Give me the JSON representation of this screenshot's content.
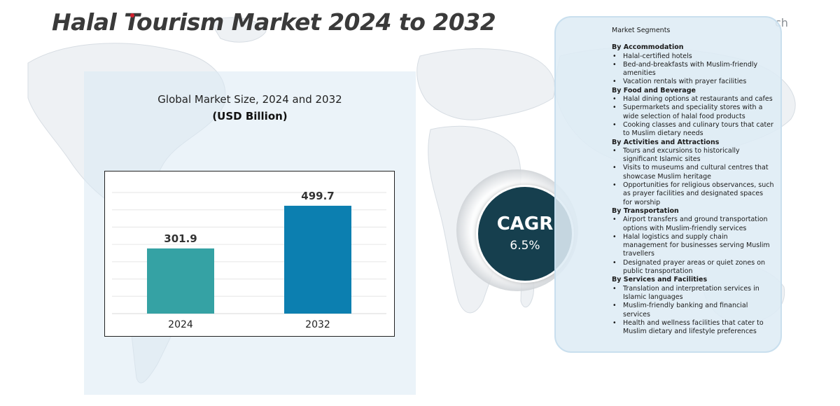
{
  "title": "Halal Tourism Market 2024 to 2032",
  "brand_fragment": "ch",
  "chart_title": "Global Market Size, 2024 and 2032",
  "chart_subtitle": "(USD Billion)",
  "chart_data": {
    "type": "bar",
    "title": "Global Market Size, 2024 and 2032",
    "subtitle": "(USD Billion)",
    "categories": [
      "2024",
      "2032"
    ],
    "values": [
      301.9,
      499.7
    ],
    "data_labels": [
      "301.9",
      "499.7"
    ],
    "colors": [
      "#35a2a4",
      "#0c7fb0"
    ],
    "ylim": [
      0,
      600
    ],
    "grid": true,
    "xlabel": "",
    "ylabel": ""
  },
  "cagr": {
    "label": "CAGR",
    "value": "6.5%"
  },
  "segments": {
    "heading": "Market Segments",
    "groups": [
      {
        "title": "By Accommodation",
        "items": [
          "Halal-certified hotels",
          "Bed-and-breakfasts with Muslim-friendly amenities",
          "Vacation rentals with prayer facilities"
        ]
      },
      {
        "title": "By Food and Beverage",
        "items": [
          "Halal dining options at restaurants and cafes",
          "Supermarkets and speciality stores with a wide selection of halal food products",
          "Cooking classes and culinary tours that cater to Muslim dietary needs"
        ]
      },
      {
        "title": "By Activities and Attractions",
        "items": [
          "Tours and excursions to historically significant Islamic sites",
          "Visits to museums and cultural centres that showcase Muslim heritage",
          "Opportunities for religious observances, such as prayer facilities and designated spaces for worship"
        ]
      },
      {
        "title": "By Transportation",
        "items": [
          "Airport transfers and ground transportation options with Muslim-friendly services",
          "Halal logistics and supply chain management for businesses serving Muslim travellers",
          "Designated prayer areas or quiet zones on public transportation"
        ]
      },
      {
        "title": "By Services and Facilities",
        "items": [
          "Translation and interpretation services in Islamic languages",
          "Muslim-friendly banking and financial services",
          "Health and wellness facilities that cater to Muslim dietary and lifestyle preferences"
        ]
      }
    ]
  },
  "colors": {
    "title": "#3a3a3a",
    "cagr_bg": "#163f4e",
    "panel_bg": "#dcebf4",
    "title_dot": "#d3202e"
  }
}
